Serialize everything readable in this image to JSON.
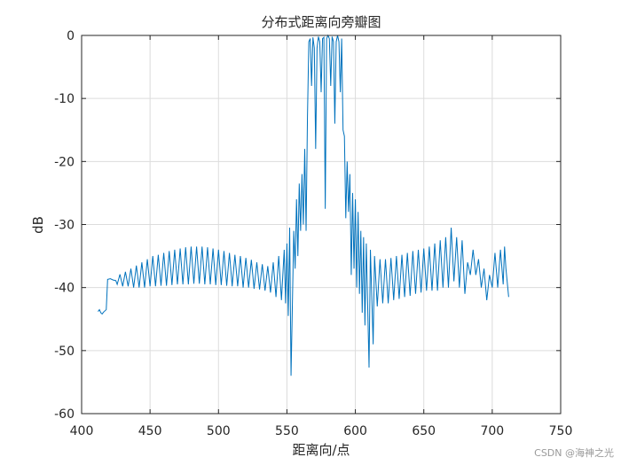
{
  "chart_data": {
    "type": "line",
    "title": "分布式距离向旁瓣图",
    "x_label": "距离向/点",
    "y_label": "dB",
    "watermark": "CSDN @海神之光",
    "grid": true,
    "xlim": [
      400,
      750
    ],
    "xticks": [
      400,
      450,
      500,
      550,
      600,
      650,
      700,
      750
    ],
    "ylim": [
      -60,
      0
    ],
    "yticks": [
      -60,
      -50,
      -40,
      -30,
      -20,
      -10,
      0
    ],
    "series": [
      {
        "color": "#0072bd",
        "x": [
          412,
          413,
          414,
          415,
          416,
          418,
          419,
          421,
          423,
          425,
          426,
          428,
          430,
          432,
          434,
          436,
          438,
          440,
          442,
          444,
          446,
          448,
          450,
          452,
          454,
          456,
          458,
          460,
          462,
          464,
          466,
          468,
          470,
          472,
          474,
          476,
          478,
          480,
          482,
          484,
          486,
          488,
          490,
          492,
          494,
          496,
          498,
          500,
          502,
          504,
          506,
          508,
          510,
          512,
          514,
          516,
          518,
          520,
          522,
          524,
          526,
          528,
          530,
          532,
          534,
          536,
          538,
          540,
          542,
          544,
          546,
          548,
          549,
          550,
          551,
          552,
          553,
          555,
          556,
          557,
          558,
          559,
          560,
          561,
          562,
          563,
          564,
          565,
          566,
          567,
          568,
          569,
          570,
          571,
          572,
          573,
          574,
          575,
          576,
          577,
          578,
          579,
          580,
          581,
          582,
          583,
          584,
          585,
          586,
          587,
          588,
          589,
          590,
          591,
          592,
          593,
          594,
          595,
          596,
          597,
          598,
          599,
          600,
          601,
          602,
          603,
          604,
          605,
          606,
          607,
          608,
          610,
          611,
          613,
          614,
          616,
          618,
          620,
          622,
          624,
          626,
          628,
          630,
          632,
          634,
          636,
          638,
          640,
          642,
          644,
          646,
          648,
          650,
          652,
          654,
          656,
          658,
          660,
          662,
          664,
          666,
          668,
          670,
          672,
          674,
          676,
          678,
          680,
          682,
          684,
          686,
          688,
          690,
          692,
          694,
          696,
          698,
          700,
          702,
          704,
          706,
          708,
          709,
          710,
          712
        ],
        "values": [
          -43.8,
          -43.5,
          -44,
          -44.2,
          -43.9,
          -43.5,
          -38.7,
          -38.6,
          -38.8,
          -38.9,
          -39.5,
          -37.9,
          -39.8,
          -37.5,
          -39.8,
          -37,
          -40,
          -36.5,
          -40,
          -36,
          -40,
          -35.5,
          -39.8,
          -35,
          -39.8,
          -34.8,
          -39.7,
          -34.5,
          -39.7,
          -34.2,
          -39.6,
          -34,
          -39.5,
          -33.8,
          -39.5,
          -33.6,
          -39.5,
          -33.5,
          -39.4,
          -33.5,
          -39.4,
          -33.5,
          -39.5,
          -33.6,
          -39.5,
          -33.8,
          -39.6,
          -34,
          -39.6,
          -34.2,
          -39.7,
          -34.5,
          -39.8,
          -34.8,
          -39.8,
          -35,
          -40,
          -35.3,
          -40,
          -35.6,
          -40.2,
          -36,
          -40.3,
          -36.3,
          -40.5,
          -36.6,
          -40.8,
          -36,
          -41.5,
          -35,
          -42,
          -34,
          -42.5,
          -33,
          -44.5,
          -30.5,
          -54,
          -31,
          -37,
          -26,
          -35,
          -23.5,
          -31,
          -22,
          -30,
          -18,
          -31,
          -13,
          -1,
          -0.5,
          -8,
          -0.3,
          -2,
          -18,
          -2,
          -0.2,
          -1,
          -9,
          -0.5,
          -0.3,
          -27.5,
          -0.5,
          0,
          -0.5,
          -8,
          -0.2,
          -1,
          -14,
          -1,
          0,
          -1,
          -9,
          -0.5,
          -15,
          -16,
          -29,
          -20,
          -28,
          -22,
          -38,
          -25,
          -37,
          -26,
          -40,
          -28,
          -41,
          -31,
          -44,
          -32,
          -46,
          -33,
          -52.7,
          -34,
          -49,
          -35,
          -43,
          -35.5,
          -42.5,
          -35.5,
          -42.5,
          -35.3,
          -42,
          -35,
          -41.8,
          -34.8,
          -41.5,
          -34.5,
          -41.3,
          -34.2,
          -41,
          -34,
          -40.8,
          -33.8,
          -40.5,
          -33.5,
          -40.5,
          -33,
          -40.5,
          -32.5,
          -40,
          -32,
          -40,
          -30.5,
          -39,
          -32,
          -40,
          -32.5,
          -41,
          -36,
          -38,
          -34,
          -38,
          -35.5,
          -40,
          -37,
          -42,
          -38,
          -40,
          -34.5,
          -40,
          -34,
          -39.5,
          -33.5,
          -37,
          -41.5
        ]
      }
    ]
  }
}
